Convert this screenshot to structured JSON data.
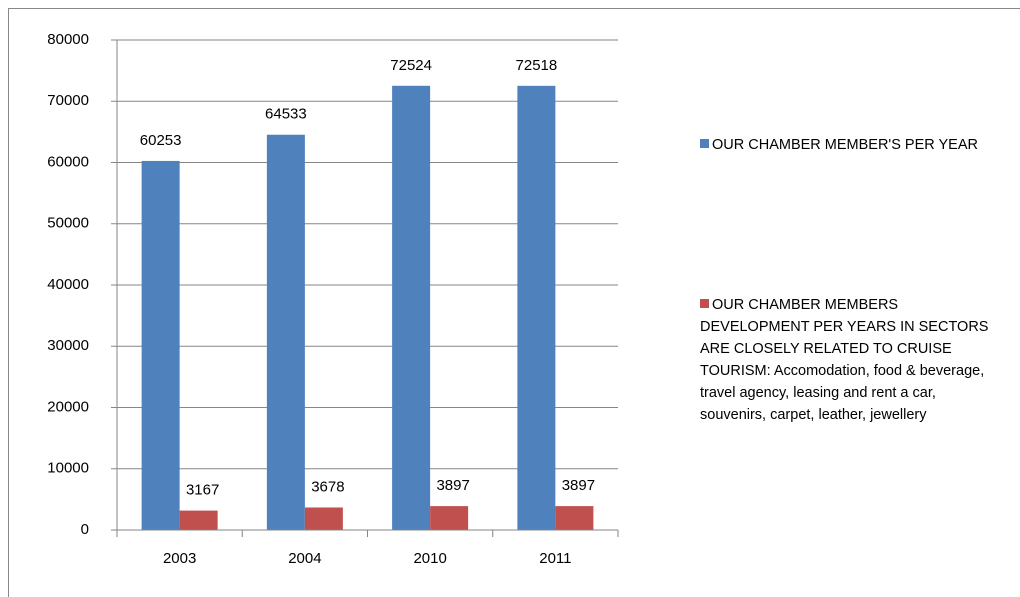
{
  "chart_data": {
    "type": "bar",
    "categories": [
      "2003",
      "2004",
      "2010",
      "2011"
    ],
    "series": [
      {
        "name": "OUR CHAMBER MEMBER'S PER YEAR",
        "color": "#4f81bd",
        "values": [
          60253,
          64533,
          72524,
          72518
        ]
      },
      {
        "name": "OUR CHAMBER MEMBERS DEVELOPMENT PER YEARS IN SECTORS ARE CLOSELY RELATED TO CRUISE TOURISM: Accomodation, food & beverage, travel agency, leasing and rent a car, souvenirs, carpet, leather, jewellery",
        "color": "#c0504d",
        "values": [
          3167,
          3678,
          3897,
          3897
        ]
      }
    ],
    "ylim": [
      0,
      80000
    ],
    "yticks": [
      0,
      10000,
      20000,
      30000,
      40000,
      50000,
      60000,
      70000,
      80000
    ],
    "grid": true,
    "legend": "right"
  }
}
